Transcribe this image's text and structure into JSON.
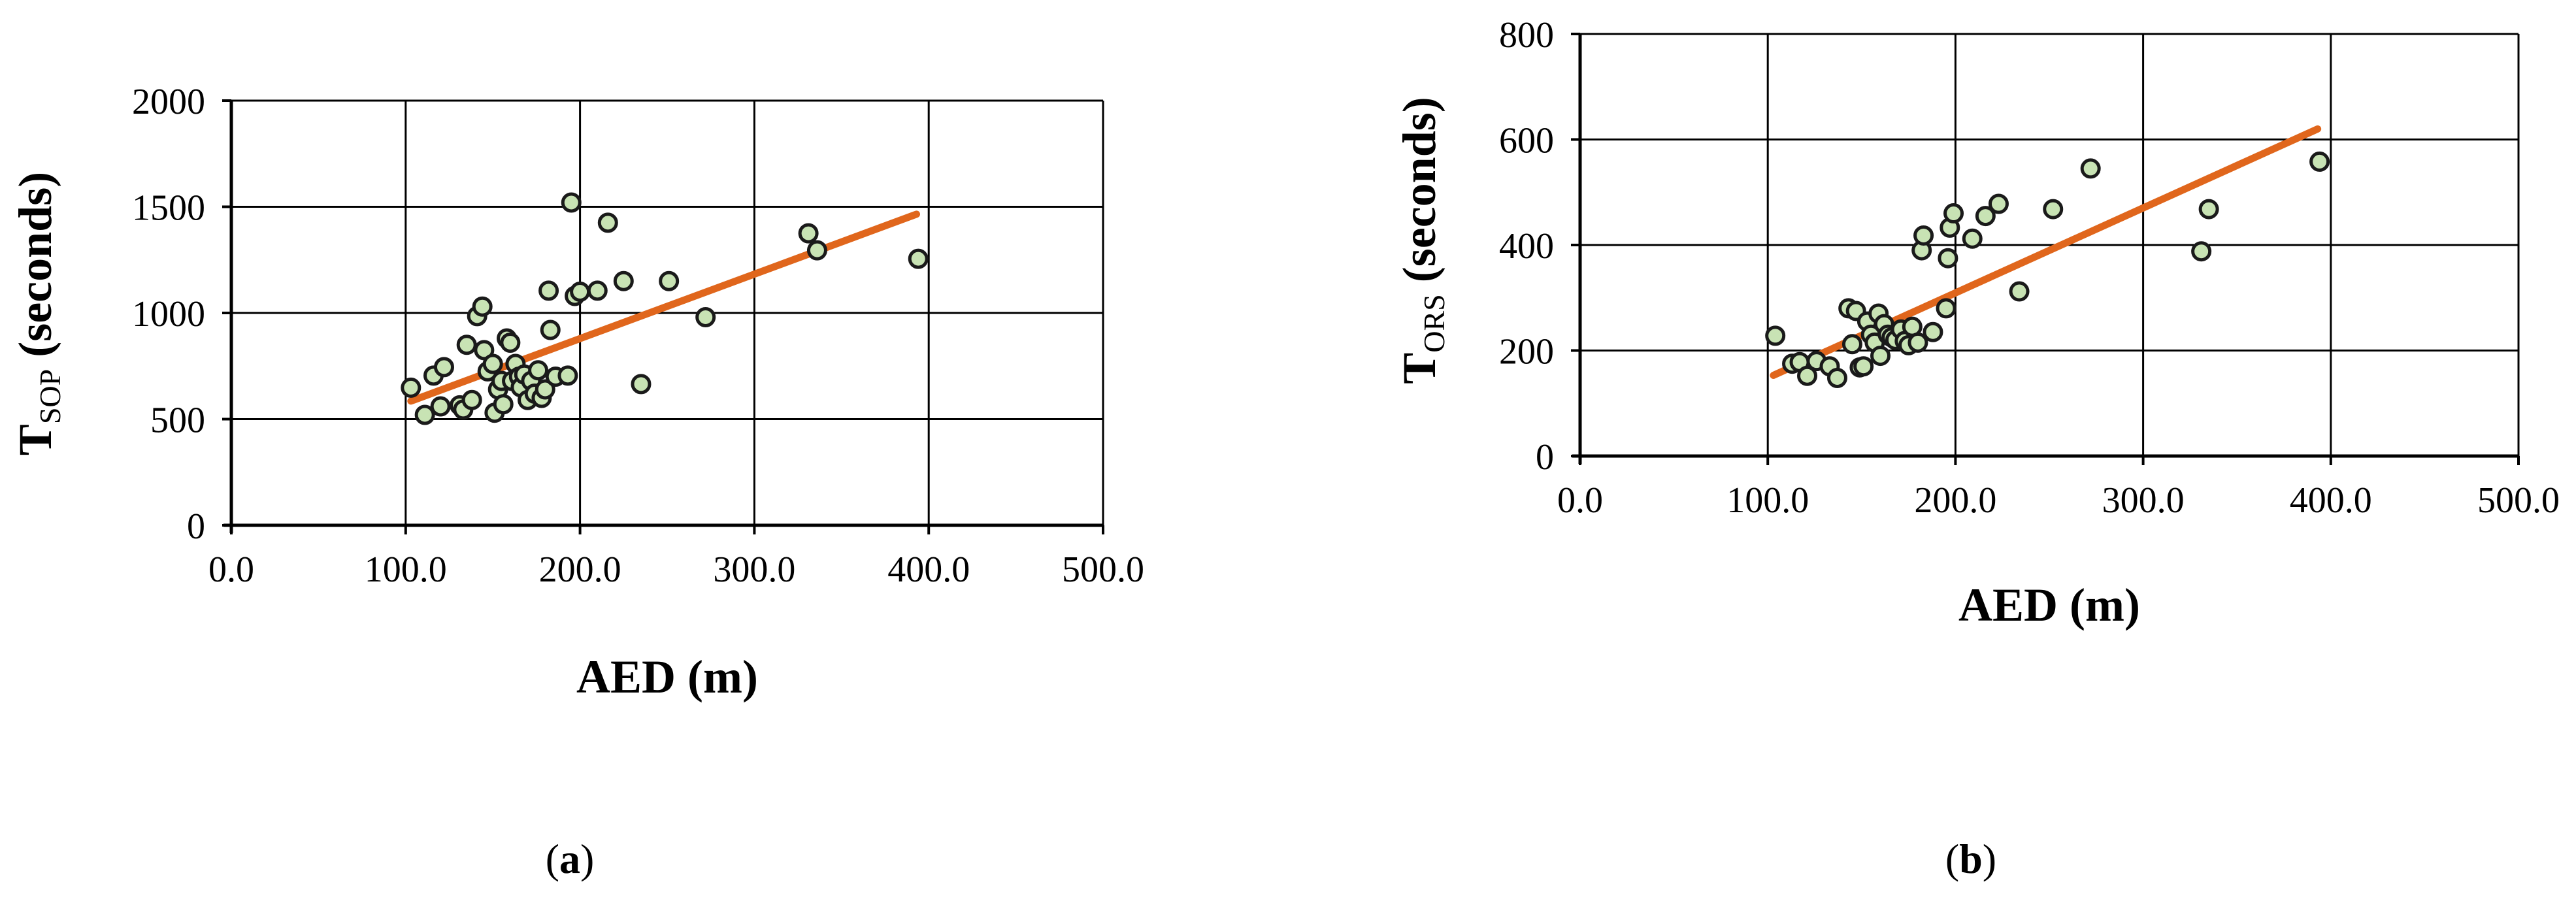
{
  "chart_data": [
    {
      "type": "scatter",
      "panel_label": "a",
      "xlabel": "AED (m)",
      "ylabel_main": "T",
      "ylabel_sub": "SOP",
      "ylabel_suffix": " (seconds)",
      "xlim": [
        0,
        500
      ],
      "ylim": [
        0,
        2000
      ],
      "x_ticks": [
        0,
        100,
        200,
        300,
        400,
        500
      ],
      "x_tick_labels": [
        "0.0",
        "100.0",
        "200.0",
        "300.0",
        "400.0",
        "500.0"
      ],
      "y_ticks": [
        0,
        500,
        1000,
        1500,
        2000
      ],
      "y_tick_labels": [
        "0",
        "500",
        "1000",
        "1500",
        "2000"
      ],
      "grid": true,
      "marker_fill": "#c8e3b4",
      "marker_edge": "#1a1a1a",
      "trendline_color": "#e0661c",
      "trendline": {
        "x": [
          103,
          393
        ],
        "y": [
          585,
          1465
        ]
      },
      "points": [
        {
          "x": 103,
          "y": 648
        },
        {
          "x": 111,
          "y": 520
        },
        {
          "x": 116,
          "y": 705
        },
        {
          "x": 120,
          "y": 560
        },
        {
          "x": 122,
          "y": 745
        },
        {
          "x": 131,
          "y": 565
        },
        {
          "x": 133,
          "y": 545
        },
        {
          "x": 135,
          "y": 850
        },
        {
          "x": 138,
          "y": 590
        },
        {
          "x": 141,
          "y": 985
        },
        {
          "x": 144,
          "y": 1030
        },
        {
          "x": 145,
          "y": 825
        },
        {
          "x": 147,
          "y": 725
        },
        {
          "x": 150,
          "y": 760
        },
        {
          "x": 151,
          "y": 530
        },
        {
          "x": 153,
          "y": 640
        },
        {
          "x": 155,
          "y": 680
        },
        {
          "x": 156,
          "y": 570
        },
        {
          "x": 158,
          "y": 880
        },
        {
          "x": 160,
          "y": 860
        },
        {
          "x": 161,
          "y": 680
        },
        {
          "x": 163,
          "y": 760
        },
        {
          "x": 165,
          "y": 700
        },
        {
          "x": 166,
          "y": 650
        },
        {
          "x": 168,
          "y": 710
        },
        {
          "x": 170,
          "y": 590
        },
        {
          "x": 172,
          "y": 680
        },
        {
          "x": 174,
          "y": 620
        },
        {
          "x": 176,
          "y": 730
        },
        {
          "x": 178,
          "y": 600
        },
        {
          "x": 180,
          "y": 640
        },
        {
          "x": 182,
          "y": 1105
        },
        {
          "x": 183,
          "y": 920
        },
        {
          "x": 186,
          "y": 700
        },
        {
          "x": 193,
          "y": 705
        },
        {
          "x": 195,
          "y": 1520
        },
        {
          "x": 197,
          "y": 1080
        },
        {
          "x": 200,
          "y": 1100
        },
        {
          "x": 210,
          "y": 1105
        },
        {
          "x": 216,
          "y": 1425
        },
        {
          "x": 225,
          "y": 1150
        },
        {
          "x": 235,
          "y": 665
        },
        {
          "x": 251,
          "y": 1150
        },
        {
          "x": 272,
          "y": 980
        },
        {
          "x": 331,
          "y": 1375
        },
        {
          "x": 336,
          "y": 1295
        },
        {
          "x": 394,
          "y": 1255
        }
      ]
    },
    {
      "type": "scatter",
      "panel_label": "b",
      "xlabel": "AED (m)",
      "ylabel_main": "T",
      "ylabel_sub": "ORS",
      "ylabel_suffix": " (seconds)",
      "xlim": [
        0,
        500
      ],
      "ylim": [
        0,
        800
      ],
      "x_ticks": [
        0,
        100,
        200,
        300,
        400,
        500
      ],
      "x_tick_labels": [
        "0.0",
        "100.0",
        "200.0",
        "300.0",
        "400.0",
        "500.0"
      ],
      "y_ticks": [
        0,
        200,
        400,
        600,
        800
      ],
      "y_tick_labels": [
        "0",
        "200",
        "400",
        "600",
        "800"
      ],
      "grid": true,
      "marker_fill": "#c8e3b4",
      "marker_edge": "#1a1a1a",
      "trendline_color": "#e0661c",
      "trendline": {
        "x": [
          103,
          393
        ],
        "y": [
          153,
          620
        ]
      },
      "points": [
        {
          "x": 104,
          "y": 228
        },
        {
          "x": 113,
          "y": 175
        },
        {
          "x": 117,
          "y": 178
        },
        {
          "x": 121,
          "y": 152
        },
        {
          "x": 126,
          "y": 180
        },
        {
          "x": 133,
          "y": 170
        },
        {
          "x": 137,
          "y": 148
        },
        {
          "x": 143,
          "y": 280
        },
        {
          "x": 145,
          "y": 212
        },
        {
          "x": 147,
          "y": 275
        },
        {
          "x": 149,
          "y": 168
        },
        {
          "x": 151,
          "y": 170
        },
        {
          "x": 153,
          "y": 255
        },
        {
          "x": 155,
          "y": 230
        },
        {
          "x": 157,
          "y": 215
        },
        {
          "x": 159,
          "y": 270
        },
        {
          "x": 160,
          "y": 190
        },
        {
          "x": 162,
          "y": 250
        },
        {
          "x": 164,
          "y": 230
        },
        {
          "x": 166,
          "y": 225
        },
        {
          "x": 168,
          "y": 220
        },
        {
          "x": 171,
          "y": 240
        },
        {
          "x": 173,
          "y": 218
        },
        {
          "x": 175,
          "y": 210
        },
        {
          "x": 177,
          "y": 245
        },
        {
          "x": 180,
          "y": 215
        },
        {
          "x": 182,
          "y": 390
        },
        {
          "x": 183,
          "y": 418
        },
        {
          "x": 188,
          "y": 235
        },
        {
          "x": 195,
          "y": 280
        },
        {
          "x": 196,
          "y": 375
        },
        {
          "x": 197,
          "y": 433
        },
        {
          "x": 199,
          "y": 460
        },
        {
          "x": 209,
          "y": 412
        },
        {
          "x": 216,
          "y": 455
        },
        {
          "x": 223,
          "y": 478
        },
        {
          "x": 234,
          "y": 312
        },
        {
          "x": 252,
          "y": 468
        },
        {
          "x": 272,
          "y": 545
        },
        {
          "x": 331,
          "y": 388
        },
        {
          "x": 335,
          "y": 468
        },
        {
          "x": 394,
          "y": 558
        }
      ]
    }
  ]
}
